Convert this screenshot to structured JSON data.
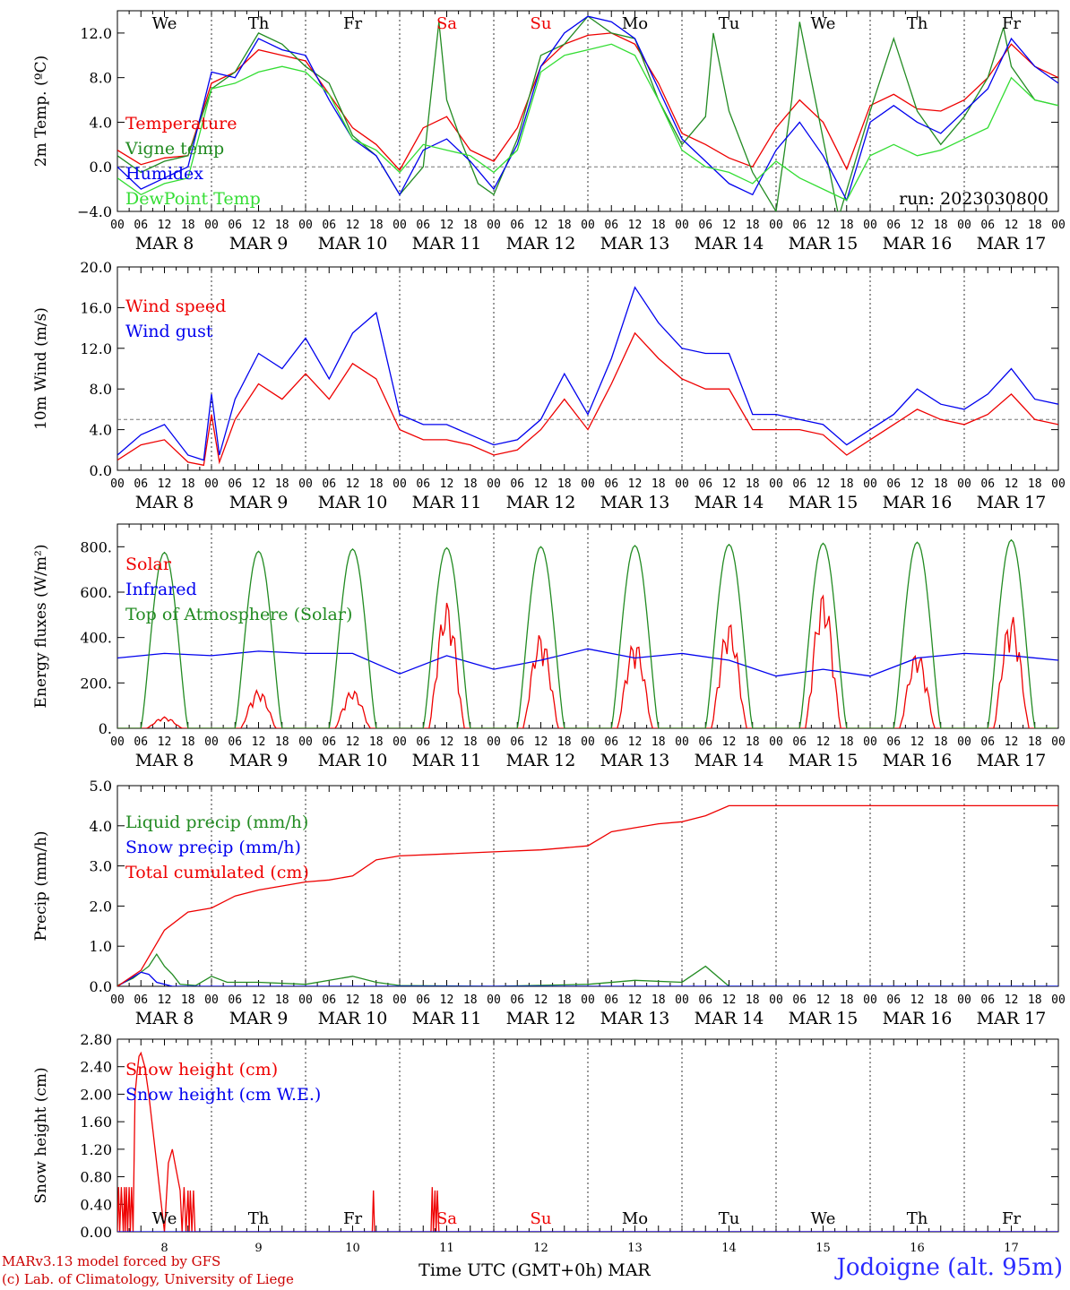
{
  "meta": {
    "run_label": "run: 2023030800",
    "credit_line1": "MARv3.13 model forced by GFS",
    "credit_line2": "(c) Lab. of Climatology, University of Liege",
    "station": "Jodoigne (alt. 95m)",
    "xlabel": "Time UTC (GMT+0h)",
    "month": "MAR",
    "colors": {
      "red": "#ee0000",
      "blue": "#0000ee",
      "green": "#228b22",
      "lightgreen": "#33dd33",
      "purple": "#660099"
    }
  },
  "days": {
    "abbr": [
      "We",
      "Th",
      "Fr",
      "Sa",
      "Su",
      "Mo",
      "Tu",
      "We",
      "Th",
      "Fr"
    ],
    "abbr_colors": [
      "#000000",
      "#000000",
      "#000000",
      "#ee0000",
      "#ee0000",
      "#000000",
      "#000000",
      "#000000",
      "#000000",
      "#000000"
    ],
    "dates": [
      "MAR  8",
      "MAR  9",
      "MAR 10",
      "MAR 11",
      "MAR 12",
      "MAR 13",
      "MAR 14",
      "MAR 15",
      "MAR 16",
      "MAR 17"
    ],
    "numbers": [
      "8",
      "9",
      "10",
      "11",
      "12",
      "13",
      "14",
      "15",
      "16",
      "17"
    ],
    "hour_ticks": [
      "00",
      "06",
      "12",
      "18"
    ],
    "end_tick": "00"
  },
  "chart_data": [
    {
      "type": "line",
      "ylabel": "2m Temp. (ºC)",
      "ylim": [
        -4,
        14
      ],
      "yticks": [
        "−4.0",
        "0.0",
        "4.0",
        "8.0",
        "12.0"
      ],
      "ytick_values": [
        -4,
        0,
        4,
        8,
        12
      ],
      "reference_line": 0,
      "x_unit": "hours since MAR 8 00 UTC",
      "series": [
        {
          "name": "Temperature",
          "color": "#ee0000",
          "x": [
            0,
            6,
            12,
            18,
            24,
            30,
            36,
            42,
            48,
            54,
            60,
            66,
            72,
            78,
            84,
            90,
            96,
            102,
            108,
            114,
            120,
            126,
            132,
            138,
            144,
            150,
            156,
            162,
            168,
            174,
            180,
            186,
            192,
            198,
            204,
            210,
            216,
            222,
            228,
            234,
            240
          ],
          "y": [
            1.5,
            0.2,
            0.8,
            1.0,
            7.5,
            8.5,
            10.5,
            10.0,
            9.5,
            6.5,
            3.5,
            2.0,
            -0.3,
            3.5,
            4.5,
            1.5,
            0.5,
            3.5,
            9.0,
            11.0,
            11.8,
            12.0,
            11.0,
            7.5,
            3.0,
            2.0,
            0.8,
            0.0,
            3.5,
            6.0,
            4.0,
            -0.2,
            5.5,
            6.5,
            5.2,
            5.0,
            6.0,
            8.0,
            11.0,
            9.0,
            8.0
          ]
        },
        {
          "name": "Vigne temp",
          "color": "#228b22",
          "x": [
            0,
            6,
            12,
            18,
            24,
            30,
            36,
            42,
            48,
            54,
            60,
            66,
            72,
            78,
            82,
            84,
            88,
            92,
            96,
            102,
            108,
            114,
            120,
            126,
            132,
            138,
            144,
            150,
            152,
            156,
            162,
            168,
            172,
            174,
            178,
            184,
            192,
            198,
            204,
            210,
            216,
            222,
            226,
            228,
            234,
            240
          ],
          "y": [
            1.0,
            -0.5,
            0.5,
            1.0,
            7.0,
            8.5,
            12.0,
            11.0,
            9.0,
            7.5,
            2.8,
            1.0,
            -2.5,
            0.0,
            13.0,
            6.0,
            2.0,
            -1.5,
            -2.5,
            2.5,
            10.0,
            11.0,
            13.5,
            12.0,
            11.5,
            6.0,
            2.0,
            4.5,
            12.0,
            5.0,
            -0.5,
            -4.0,
            6.0,
            13.0,
            6.0,
            -4.5,
            5.0,
            11.5,
            5.0,
            2.0,
            4.5,
            8.0,
            12.5,
            9.0,
            6.0,
            5.5
          ]
        },
        {
          "name": "Humidex",
          "color": "#0000ee",
          "x": [
            0,
            6,
            12,
            18,
            24,
            30,
            36,
            42,
            48,
            54,
            60,
            66,
            72,
            78,
            84,
            90,
            96,
            102,
            108,
            114,
            120,
            126,
            132,
            138,
            144,
            150,
            156,
            162,
            168,
            174,
            180,
            186,
            192,
            198,
            204,
            210,
            216,
            222,
            228,
            234,
            240
          ],
          "y": [
            0.0,
            -2.0,
            -1.0,
            0.0,
            8.5,
            8.0,
            11.5,
            10.5,
            10.0,
            6.0,
            2.5,
            1.0,
            -2.5,
            1.5,
            2.5,
            0.5,
            -2.0,
            2.0,
            9.0,
            12.0,
            13.5,
            13.0,
            11.5,
            7.0,
            2.5,
            0.5,
            -1.5,
            -2.5,
            1.5,
            4.0,
            1.0,
            -3.0,
            4.0,
            5.5,
            4.0,
            3.0,
            5.0,
            7.0,
            11.5,
            9.0,
            7.5
          ]
        },
        {
          "name": "DewPoint Temp",
          "color": "#33dd33",
          "x": [
            0,
            6,
            12,
            18,
            24,
            30,
            36,
            42,
            48,
            54,
            60,
            66,
            72,
            78,
            84,
            90,
            96,
            102,
            108,
            114,
            120,
            126,
            132,
            138,
            144,
            150,
            156,
            162,
            168,
            174,
            180,
            186,
            192,
            198,
            204,
            210,
            216,
            222,
            228,
            234,
            240
          ],
          "y": [
            -1.0,
            -2.5,
            -1.5,
            -1.0,
            7.0,
            7.5,
            8.5,
            9.0,
            8.5,
            6.5,
            2.5,
            1.5,
            -0.5,
            2.0,
            1.5,
            1.0,
            -0.5,
            1.5,
            8.5,
            10.0,
            10.5,
            11.0,
            10.0,
            6.0,
            1.5,
            0.0,
            -0.5,
            -1.5,
            0.5,
            -1.0,
            -2.0,
            -3.0,
            1.0,
            2.0,
            1.0,
            1.5,
            2.5,
            3.5,
            8.0,
            6.0,
            5.5
          ]
        }
      ]
    },
    {
      "type": "line",
      "ylabel": "10m Wind (m/s)",
      "ylim": [
        0,
        20
      ],
      "yticks": [
        "0.0",
        "4.0",
        "8.0",
        "12.0",
        "16.0",
        "20.0"
      ],
      "ytick_values": [
        0,
        4,
        8,
        12,
        16,
        20
      ],
      "reference_line": 5,
      "x_unit": "hours since MAR 8 00 UTC",
      "series": [
        {
          "name": "Wind speed",
          "color": "#ee0000",
          "x": [
            0,
            6,
            12,
            18,
            22,
            24,
            26,
            30,
            36,
            42,
            48,
            54,
            60,
            66,
            72,
            78,
            84,
            90,
            96,
            102,
            108,
            114,
            120,
            126,
            132,
            138,
            144,
            150,
            156,
            162,
            168,
            174,
            180,
            186,
            192,
            198,
            204,
            210,
            216,
            222,
            228,
            234,
            240
          ],
          "y": [
            1.0,
            2.5,
            3.0,
            0.8,
            0.5,
            5.5,
            0.8,
            5.0,
            8.5,
            7.0,
            9.5,
            7.0,
            10.5,
            9.0,
            4.0,
            3.0,
            3.0,
            2.5,
            1.5,
            2.0,
            4.0,
            7.0,
            4.0,
            8.5,
            13.5,
            11.0,
            9.0,
            8.0,
            8.0,
            4.0,
            4.0,
            4.0,
            3.5,
            1.5,
            3.0,
            4.5,
            6.0,
            5.0,
            4.5,
            5.5,
            7.5,
            5.0,
            4.5
          ]
        },
        {
          "name": "Wind gust",
          "color": "#0000ee",
          "x": [
            0,
            6,
            12,
            18,
            22,
            24,
            26,
            30,
            36,
            42,
            48,
            54,
            60,
            66,
            72,
            78,
            84,
            90,
            96,
            102,
            108,
            114,
            120,
            126,
            132,
            138,
            144,
            150,
            156,
            162,
            168,
            174,
            180,
            186,
            192,
            198,
            204,
            210,
            216,
            222,
            228,
            234,
            240
          ],
          "y": [
            1.5,
            3.5,
            4.5,
            1.5,
            1.0,
            7.5,
            1.5,
            7.0,
            11.5,
            10.0,
            13.0,
            9.0,
            13.5,
            15.5,
            5.5,
            4.5,
            4.5,
            3.5,
            2.5,
            3.0,
            5.0,
            9.5,
            5.5,
            11.0,
            18.0,
            14.5,
            12.0,
            11.5,
            11.5,
            5.5,
            5.5,
            5.0,
            4.5,
            2.5,
            4.0,
            5.5,
            8.0,
            6.5,
            6.0,
            7.5,
            10.0,
            7.0,
            6.5
          ]
        }
      ]
    },
    {
      "type": "line",
      "ylabel": "Energy fluxes (W/m²)",
      "ylim": [
        0,
        900
      ],
      "yticks": [
        "0.",
        "200.",
        "400.",
        "600.",
        "800."
      ],
      "ytick_values": [
        0,
        200,
        400,
        600,
        800
      ],
      "x_unit": "hours since MAR 8 00 UTC",
      "series": [
        {
          "name": "Solar",
          "color": "#ee0000",
          "peaks": [
            50,
            170,
            170,
            560,
            420,
            390,
            470,
            600,
            340,
            500
          ]
        },
        {
          "name": "Infrared",
          "color": "#0000ee",
          "x": [
            0,
            12,
            24,
            36,
            48,
            60,
            72,
            84,
            96,
            108,
            120,
            132,
            144,
            156,
            168,
            180,
            192,
            204,
            216,
            228,
            240
          ],
          "y": [
            310,
            330,
            320,
            340,
            330,
            330,
            240,
            320,
            260,
            300,
            350,
            310,
            330,
            300,
            230,
            260,
            230,
            310,
            330,
            320,
            300
          ]
        },
        {
          "name": "Top of Atmosphere (Solar)",
          "color": "#228b22",
          "peaks": [
            775,
            780,
            790,
            795,
            800,
            805,
            810,
            815,
            820,
            830
          ]
        }
      ]
    },
    {
      "type": "line",
      "ylabel": "Precip (mm/h)",
      "ylim": [
        0,
        5
      ],
      "yticks": [
        "0.0",
        "1.0",
        "2.0",
        "3.0",
        "4.0",
        "5.0"
      ],
      "ytick_values": [
        0,
        1,
        2,
        3,
        4,
        5
      ],
      "x_unit": "hours since MAR 8 00 UTC",
      "series": [
        {
          "name": "Liquid precip (mm/h)",
          "color": "#228b22",
          "x": [
            0,
            4,
            8,
            10,
            12,
            14,
            16,
            20,
            24,
            28,
            36,
            48,
            60,
            66,
            72,
            96,
            120,
            132,
            144,
            150,
            156,
            162,
            168,
            240
          ],
          "y": [
            0.02,
            0.2,
            0.5,
            0.8,
            0.5,
            0.3,
            0.05,
            0.02,
            0.25,
            0.1,
            0.1,
            0.05,
            0.25,
            0.1,
            0.02,
            0.0,
            0.05,
            0.15,
            0.1,
            0.5,
            0.0,
            0.0,
            0.0,
            0.0
          ]
        },
        {
          "name": "Snow precip (mm/h)",
          "color": "#0000ee",
          "x": [
            0,
            6,
            8,
            10,
            14,
            20,
            24,
            240
          ],
          "y": [
            0.0,
            0.35,
            0.3,
            0.1,
            0.0,
            0.0,
            0.0,
            0.0
          ]
        },
        {
          "name": "Total cumulated (cm)",
          "color": "#ee0000",
          "x": [
            0,
            6,
            12,
            18,
            24,
            30,
            36,
            42,
            48,
            54,
            60,
            66,
            72,
            84,
            96,
            108,
            120,
            126,
            132,
            138,
            144,
            150,
            156,
            240
          ],
          "y": [
            0.0,
            0.4,
            1.4,
            1.85,
            1.95,
            2.25,
            2.4,
            2.5,
            2.6,
            2.65,
            2.75,
            3.15,
            3.25,
            3.3,
            3.35,
            3.4,
            3.5,
            3.85,
            3.95,
            4.05,
            4.1,
            4.25,
            4.5,
            4.5
          ]
        }
      ]
    },
    {
      "type": "line",
      "ylabel": "Snow height (cm)",
      "ylim": [
        0,
        2.8
      ],
      "yticks": [
        "0.00",
        "0.40",
        "0.80",
        "1.20",
        "1.60",
        "2.00",
        "2.40",
        "2.80"
      ],
      "ytick_values": [
        0,
        0.4,
        0.8,
        1.2,
        1.6,
        2.0,
        2.4,
        2.8
      ],
      "x_unit": "hours since MAR 8 00 UTC",
      "series": [
        {
          "name": "Snow height (cm)",
          "color": "#ee0000",
          "x": [
            0,
            0.3,
            0.6,
            1,
            1.5,
            1.8,
            2,
            2.3,
            2.6,
            3,
            3.3,
            3.6,
            4,
            4.5,
            5,
            5.5,
            6,
            7,
            8,
            9,
            10,
            11,
            12,
            13,
            14,
            15,
            16,
            16.5,
            17,
            17.5,
            18,
            18.3,
            18.6,
            19,
            19.4,
            19.8,
            20,
            65,
            65.3,
            65.6,
            66,
            80,
            80.3,
            80.6,
            81,
            81.3,
            81.6,
            82,
            240
          ],
          "y": [
            0,
            0.65,
            0,
            0.65,
            0,
            0.65,
            0,
            0.65,
            0,
            0.65,
            0,
            0.65,
            0,
            2.0,
            2.3,
            2.55,
            2.6,
            2.4,
            2.0,
            1.5,
            1.0,
            0.5,
            0,
            1.0,
            1.2,
            0.9,
            0.6,
            0,
            0.65,
            0,
            0.6,
            0,
            0.6,
            0,
            0.6,
            0,
            0,
            0,
            0.6,
            0,
            0,
            0,
            0.65,
            0,
            0.6,
            0,
            0.6,
            0,
            0
          ]
        },
        {
          "name": "Snow height (cm W.E.)",
          "color": "#0000ee",
          "x": [
            0,
            240
          ],
          "y": [
            0,
            0
          ]
        }
      ]
    }
  ]
}
